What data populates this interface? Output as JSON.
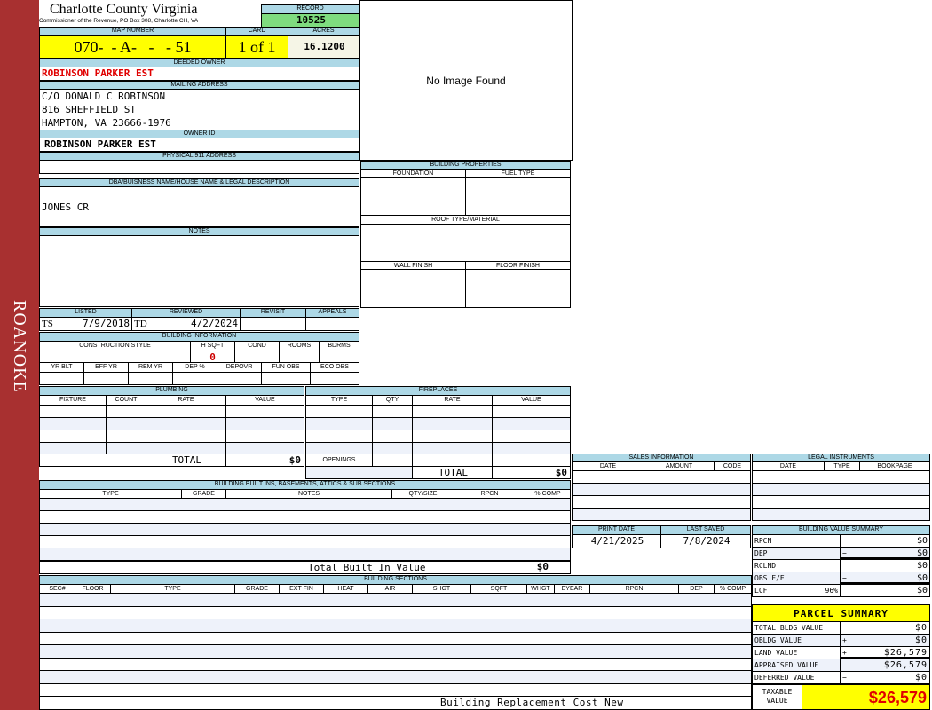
{
  "sidebar": {
    "text": "ROANOKE"
  },
  "header": {
    "title": "Charlotte County Virginia",
    "subtitle": "Commissioner of the Revenue, PO Box 308, Charlotte CH, VA",
    "record_label": "RECORD",
    "record_value": "10525"
  },
  "parcel": {
    "map_label": "MAP NUMBER",
    "map_value": "070-  - A-   -   - 51",
    "card_label": "CARD",
    "card_value": "1 of 1",
    "acres_label": "ACRES",
    "acres_value": "16.1200"
  },
  "owner": {
    "deeded_label": "DEEDED OWNER",
    "deeded_value": "ROBINSON PARKER EST",
    "mailing_label": "MAILING ADDRESS",
    "mailing_lines": [
      "C/O DONALD C ROBINSON",
      "816 SHEFFIELD ST",
      "HAMPTON, VA 23666-1976"
    ],
    "owner_id_label": "OWNER ID",
    "owner_id_value": "ROBINSON PARKER EST",
    "physical_label": "PHYSICAL 911 ADDRESS"
  },
  "image": {
    "placeholder": "No Image Found"
  },
  "building_properties": {
    "title": "BUILDING PROPERTIES",
    "foundation": "FOUNDATION",
    "fuel_type": "FUEL TYPE",
    "roof": "ROOF TYPE/MATERIAL",
    "wall": "WALL FINISH",
    "floor": "FLOOR FINISH"
  },
  "dba": {
    "label": "DBA/BUISNESS NAME/HOUSE NAME & LEGAL DESCRIPTION",
    "value": "JONES CR"
  },
  "notes": {
    "label": "NOTES"
  },
  "review": {
    "listed_label": "LISTED",
    "listed_by": "TS",
    "listed_date": "7/9/2018",
    "reviewed_label": "REVIEWED",
    "reviewed_by": "TD",
    "reviewed_date": "4/2/2024",
    "revisit_label": "REVISIT",
    "appeals_label": "APPEALS"
  },
  "building_info": {
    "title": "BUILDING INFORMATION",
    "cols1": [
      "CONSTRUCTION STYLE",
      "H SQFT",
      "COND",
      "ROOMS",
      "BDRMS"
    ],
    "hsqft_value": "0",
    "cols2": [
      "YR BLT",
      "EFF YR",
      "REM YR",
      "DEP %",
      "DEPOVR",
      "FUN OBS",
      "ECO OBS"
    ]
  },
  "plumbing": {
    "title": "PLUMBING",
    "columns": [
      "FIXTURE",
      "COUNT",
      "RATE",
      "VALUE"
    ],
    "total_label": "TOTAL",
    "total_value": "$0"
  },
  "fireplaces": {
    "title": "FIREPLACES",
    "columns": [
      "TYPE",
      "QTY",
      "RATE",
      "VALUE"
    ],
    "openings_label": "OPENINGS",
    "total_label": "TOTAL",
    "total_value": "$0"
  },
  "built_ins": {
    "title": "BUILDING BUILT INS, BASEMENTS, ATTICS & SUB SECTIONS",
    "columns": [
      "TYPE",
      "GRADE",
      "NOTES",
      "QTY/SIZE",
      "RPCN",
      "% COMP"
    ],
    "total_label": "Total Built In Value",
    "total_value": "$0"
  },
  "sections": {
    "title": "BUILDING SECTIONS",
    "columns": [
      "SEC#",
      "FLOOR",
      "TYPE",
      "GRADE",
      "EXT FIN",
      "HEAT",
      "AIR",
      "SHGT",
      "SQFT",
      "WHGT",
      "EYEAR",
      "RPCN",
      "DEP",
      "% COMP"
    ],
    "footer_label": "Building Replacement Cost New"
  },
  "sales": {
    "title": "SALES INFORMATION",
    "columns": [
      "DATE",
      "AMOUNT",
      "CODE"
    ]
  },
  "legal": {
    "title": "LEGAL INSTRUMENTS",
    "columns": [
      "DATE",
      "TYPE",
      "BOOKPAGE"
    ]
  },
  "dates": {
    "print_label": "PRINT DATE",
    "print_value": "4/21/2025",
    "saved_label": "LAST SAVED",
    "saved_value": "7/8/2024"
  },
  "value_summary": {
    "title": "BUILDING VALUE SUMMARY",
    "rows": [
      {
        "label": "RPCN",
        "sign": "",
        "value": "$0"
      },
      {
        "label": "DEP",
        "sign": "−",
        "value": "$0"
      },
      {
        "label": "RCLND",
        "sign": "",
        "value": "$0"
      },
      {
        "label": "OBS F/E",
        "sign": "−",
        "value": "$0"
      },
      {
        "label": "LCF",
        "pct": "96%",
        "sign": "",
        "value": "$0"
      }
    ]
  },
  "parcel_summary": {
    "title": "PARCEL SUMMARY",
    "rows": [
      {
        "label": "TOTAL BLDG VALUE",
        "sign": "",
        "value": "$0"
      },
      {
        "label": "OBLDG VALUE",
        "sign": "+",
        "value": "$0"
      },
      {
        "label": "LAND VALUE",
        "sign": "+",
        "value": "$26,579"
      },
      {
        "label": "APPRAISED VALUE",
        "sign": "",
        "value": "$26,579"
      },
      {
        "label": "DEFERRED VALUE",
        "sign": "−",
        "value": "$0"
      }
    ],
    "taxable_label": "TAXABLE VALUE",
    "taxable_value": "$26,579"
  },
  "colors": {
    "sidebar": "#a83030",
    "header": "#add8e6",
    "record": "#7fdc7f",
    "highlight": "#ffff00",
    "alert": "#e00000"
  }
}
